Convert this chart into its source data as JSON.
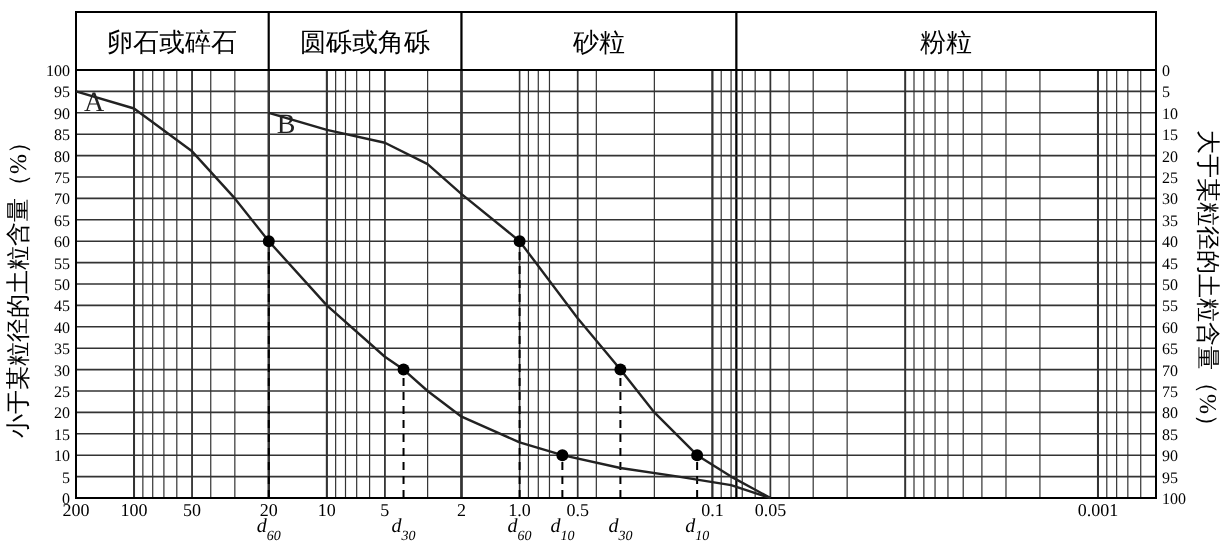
{
  "chart_data": {
    "type": "line",
    "ylabel": "小于某粒径的土粒含量（%）",
    "y2label": "大于某粒径的土粒含量（%）",
    "log": "x",
    "grid": true,
    "marker": "none",
    "line_style": "solid",
    "xlim": [
      200,
      0.0005
    ],
    "xticks": [
      200,
      100,
      50,
      20,
      10,
      5,
      2,
      {
        "value": 1,
        "label": "1.0"
      },
      0.5,
      0.1,
      0.05,
      0.001
    ],
    "ylim": [
      0,
      100
    ],
    "yticks": [
      0,
      5,
      10,
      15,
      20,
      25,
      30,
      35,
      40,
      45,
      50,
      55,
      60,
      65,
      70,
      75,
      80,
      85,
      90,
      95,
      100
    ],
    "y2lim": [
      100,
      0
    ],
    "y2ticks": [
      0,
      5,
      10,
      15,
      20,
      25,
      30,
      35,
      40,
      45,
      50,
      55,
      60,
      65,
      70,
      75,
      80,
      85,
      90,
      95,
      100
    ],
    "series": [
      {
        "name": "A",
        "color": "#222222",
        "x": [
          200,
          100,
          50,
          30,
          20,
          10,
          5,
          4,
          3,
          2,
          1,
          0.6,
          0.3,
          0.15,
          0.08,
          0.05
        ],
        "values": [
          95,
          91,
          81,
          70,
          60,
          45,
          33,
          30,
          25,
          19,
          13,
          10,
          7,
          5,
          3,
          0
        ]
      },
      {
        "name": "B",
        "color": "#222222",
        "x": [
          20,
          10,
          5,
          3,
          2,
          1,
          0.5,
          0.3,
          0.2,
          0.12,
          0.08,
          0.05
        ],
        "values": [
          90,
          86,
          83,
          78,
          71,
          60,
          42,
          30,
          20,
          10,
          5,
          0
        ]
      },
      {
        "type": "scatter",
        "marker": "circle",
        "color": "#000000",
        "x": [
          20,
          4,
          0.6,
          1,
          0.3,
          0.12
        ],
        "values": [
          60,
          30,
          10,
          60,
          30,
          10
        ]
      }
    ],
    "ref_lines": [
      {
        "axis": "x",
        "value": 20,
        "label": "d$_{60}$",
        "line_style": "dashed"
      },
      {
        "axis": "x",
        "value": 4,
        "label": "d$_{30}$",
        "line_style": "dashed"
      },
      {
        "axis": "x",
        "value": 0.6,
        "label": "d$_{10}$",
        "line_style": "dashed"
      },
      {
        "axis": "x",
        "value": 1,
        "label": "d$_{60}$",
        "line_style": "dashed"
      },
      {
        "axis": "x",
        "value": 0.3,
        "label": "d$_{30}$",
        "line_style": "dashed"
      },
      {
        "axis": "x",
        "value": 0.12,
        "label": "d$_{10}$",
        "line_style": "dashed"
      }
    ],
    "bands": [
      {
        "axis": "x",
        "from": 200,
        "to": 20,
        "label": "卵石或碎石",
        "color": "#ffffff"
      },
      {
        "axis": "x",
        "from": 20,
        "to": 2,
        "label": "圆砾或角砾",
        "color": "#ffffff"
      },
      {
        "axis": "x",
        "from": 2,
        "to": 0.075,
        "label": "砂粒",
        "color": "#ffffff"
      },
      {
        "axis": "x",
        "from": 0.075,
        "to": 0.0005,
        "label": "粉粒",
        "color": "#ffffff"
      }
    ]
  }
}
